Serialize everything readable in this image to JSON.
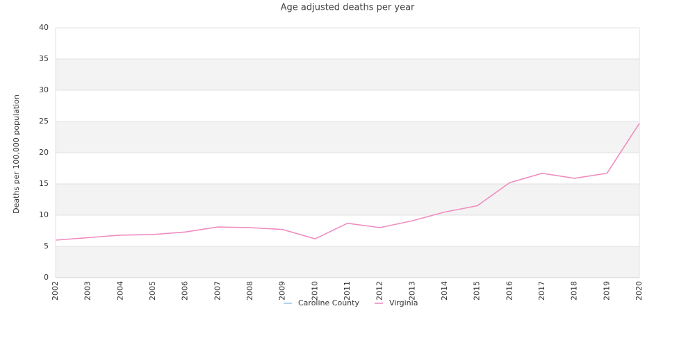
{
  "chart_data": {
    "type": "line",
    "title": "Age adjusted deaths per year",
    "y_label": "Deaths per 100,000 population",
    "categories": [
      "2002",
      "2003",
      "2004",
      "2005",
      "2006",
      "2007",
      "2008",
      "2009",
      "2010",
      "2011",
      "2012",
      "2013",
      "2014",
      "2015",
      "2016",
      "2017",
      "2018",
      "2019",
      "2020"
    ],
    "series": [
      {
        "name": "Caroline County",
        "color": "#9ecae1",
        "values": [
          null,
          null,
          null,
          null,
          null,
          null,
          null,
          null,
          null,
          null,
          null,
          null,
          null,
          null,
          null,
          null,
          null,
          null,
          null
        ]
      },
      {
        "name": "Virginia",
        "color": "#f08cc0",
        "values": [
          6.0,
          6.4,
          6.8,
          6.9,
          7.3,
          8.1,
          8.0,
          7.7,
          6.2,
          8.7,
          8.0,
          9.1,
          10.5,
          11.5,
          15.2,
          16.7,
          15.9,
          16.7,
          24.7
        ]
      }
    ],
    "ylim": [
      0,
      40
    ],
    "yticks": [
      0,
      5,
      10,
      15,
      20,
      25,
      30,
      35,
      40
    ],
    "grid": true,
    "legend": "bottom"
  }
}
